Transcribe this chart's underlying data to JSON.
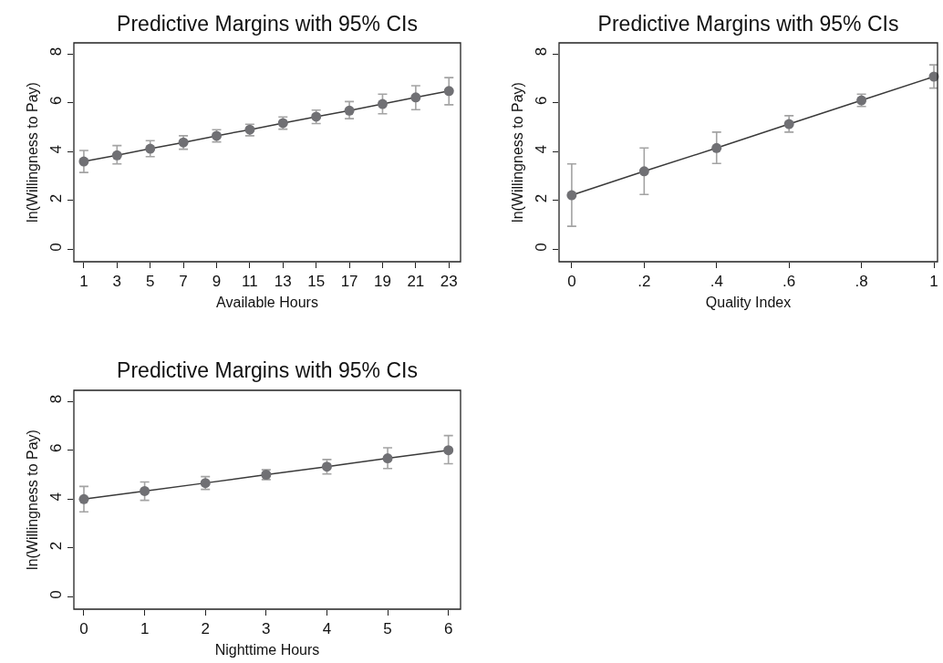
{
  "chart_data": [
    {
      "type": "line",
      "title": "Predictive Margins with 95% CIs",
      "xlabel": "Available Hours",
      "ylabel": "ln(Willingness to Pay)",
      "x": [
        1,
        3,
        5,
        7,
        9,
        11,
        13,
        15,
        17,
        19,
        21,
        23
      ],
      "series": [
        {
          "color": "#707074",
          "values": [
            3.6,
            3.85,
            4.12,
            4.38,
            4.65,
            4.9,
            5.17,
            5.43,
            5.68,
            5.95,
            6.22,
            6.48
          ],
          "errors": [
            [
              3.15,
              4.05
            ],
            [
              3.5,
              4.25
            ],
            [
              3.8,
              4.45
            ],
            [
              4.1,
              4.65
            ],
            [
              4.4,
              4.9
            ],
            [
              4.65,
              5.12
            ],
            [
              4.92,
              5.42
            ],
            [
              5.15,
              5.7
            ],
            [
              5.35,
              6.05
            ],
            [
              5.55,
              6.35
            ],
            [
              5.72,
              6.7
            ],
            [
              5.92,
              7.03
            ]
          ]
        }
      ],
      "xlim": [
        0.4,
        23.7
      ],
      "xticks": [
        1,
        3,
        5,
        7,
        9,
        11,
        13,
        15,
        17,
        19,
        21,
        23
      ],
      "ylim": [
        -0.5,
        8.45
      ],
      "yticks": [
        0,
        2,
        4,
        6,
        8
      ],
      "grid": false,
      "marker": "circle",
      "line_style": "solid"
    },
    {
      "type": "line",
      "title": "Predictive Margins with 95% CIs",
      "xlabel": "Quality Index",
      "ylabel": "ln(Willingness to Pay)",
      "x": [
        0,
        0.2,
        0.4,
        0.6,
        0.8,
        1
      ],
      "series": [
        {
          "color": "#707074",
          "values": [
            2.22,
            3.2,
            4.15,
            5.13,
            6.1,
            7.07
          ],
          "errors": [
            [
              0.95,
              3.5
            ],
            [
              2.25,
              4.15
            ],
            [
              3.52,
              4.8
            ],
            [
              4.8,
              5.47
            ],
            [
              5.85,
              6.35
            ],
            [
              6.6,
              7.55
            ]
          ]
        }
      ],
      "xlim": [
        -0.035,
        1.01
      ],
      "xticks": [
        0,
        {
          "value": 0.2,
          "label": ".2"
        },
        {
          "value": 0.4,
          "label": ".4"
        },
        {
          "value": 0.6,
          "label": ".6"
        },
        {
          "value": 0.8,
          "label": ".8"
        },
        1
      ],
      "ylim": [
        -0.5,
        8.45
      ],
      "yticks": [
        0,
        2,
        4,
        6,
        8
      ],
      "grid": false,
      "marker": "circle",
      "line_style": "solid"
    },
    {
      "type": "line",
      "title": "Predictive Margins with 95% CIs",
      "xlabel": "Nighttime Hours",
      "ylabel": "ln(Willingness to Pay)",
      "x": [
        0,
        1,
        2,
        3,
        4,
        5,
        6
      ],
      "series": [
        {
          "color": "#707074",
          "values": [
            4.0,
            4.33,
            4.66,
            5.0,
            5.33,
            5.67,
            6.0
          ],
          "errors": [
            [
              3.48,
              4.52
            ],
            [
              3.95,
              4.7
            ],
            [
              4.4,
              4.92
            ],
            [
              4.8,
              5.2
            ],
            [
              5.03,
              5.62
            ],
            [
              5.25,
              6.1
            ],
            [
              5.45,
              6.6
            ]
          ]
        }
      ],
      "xlim": [
        -0.165,
        6.2
      ],
      "xticks": [
        0,
        1,
        2,
        3,
        4,
        5,
        6
      ],
      "ylim": [
        -0.5,
        8.45
      ],
      "yticks": [
        0,
        2,
        4,
        6,
        8
      ],
      "grid": false,
      "marker": "circle",
      "line_style": "solid"
    }
  ]
}
